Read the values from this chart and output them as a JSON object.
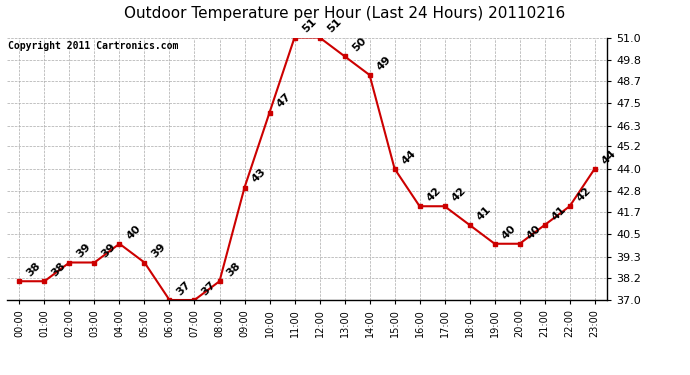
{
  "title": "Outdoor Temperature per Hour (Last 24 Hours) 20110216",
  "copyright": "Copyright 2011 Cartronics.com",
  "hours": [
    "00:00",
    "01:00",
    "02:00",
    "03:00",
    "04:00",
    "05:00",
    "06:00",
    "07:00",
    "08:00",
    "09:00",
    "10:00",
    "11:00",
    "12:00",
    "13:00",
    "14:00",
    "15:00",
    "16:00",
    "17:00",
    "18:00",
    "19:00",
    "20:00",
    "21:00",
    "22:00",
    "23:00"
  ],
  "temps": [
    38,
    38,
    39,
    39,
    40,
    39,
    37,
    37,
    38,
    43,
    47,
    51,
    51,
    50,
    49,
    44,
    42,
    42,
    41,
    40,
    40,
    41,
    42,
    44
  ],
  "line_color": "#cc0000",
  "marker_color": "#cc0000",
  "bg_color": "#ffffff",
  "grid_color": "#aaaaaa",
  "ylim_min": 37.0,
  "ylim_max": 51.0,
  "yticks": [
    37.0,
    38.2,
    39.3,
    40.5,
    41.7,
    42.8,
    44.0,
    45.2,
    46.3,
    47.5,
    48.7,
    49.8,
    51.0
  ],
  "title_fontsize": 11,
  "copyright_fontsize": 7,
  "label_fontsize": 8
}
